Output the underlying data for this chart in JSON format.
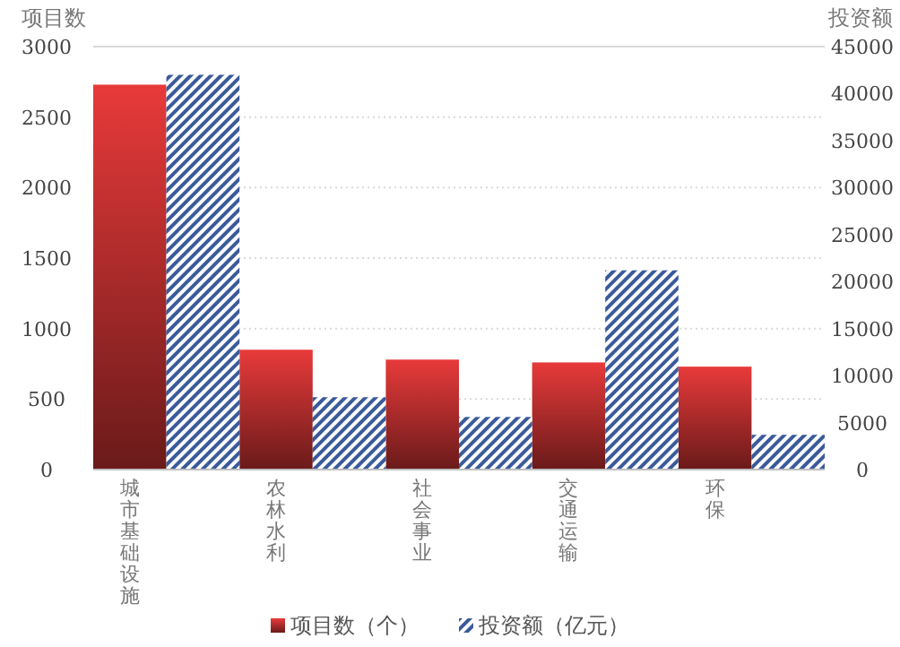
{
  "chart_data": {
    "type": "bar",
    "ylabel": "项目数",
    "y2label": "投资额",
    "categories": [
      "城市基础设施",
      "农林水利",
      "社会事业",
      "交通运输",
      "环保"
    ],
    "series": [
      {
        "name": "项目数（个）",
        "color": "#e83a3a",
        "values": [
          2730,
          850,
          780,
          760,
          730
        ]
      },
      {
        "name": "投资额（亿元）",
        "color": "#3a5a9a",
        "axis": "y2",
        "values": [
          42000,
          7700,
          5600,
          21200,
          3700
        ]
      }
    ],
    "ylim": [
      0,
      3000
    ],
    "yticks": [
      0,
      500,
      1000,
      1500,
      2000,
      2500,
      3000
    ],
    "y2lim": [
      0,
      45000
    ],
    "y2ticks": [
      0,
      5000,
      10000,
      15000,
      20000,
      25000,
      30000,
      35000,
      40000,
      45000
    ],
    "grid": "y",
    "legend": "bottom"
  }
}
